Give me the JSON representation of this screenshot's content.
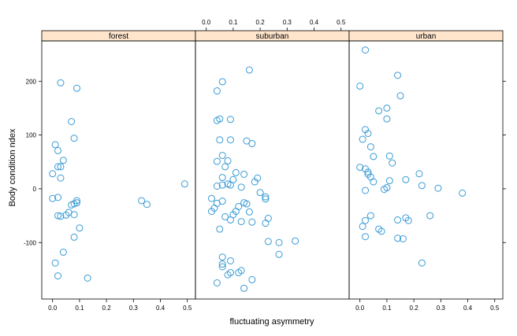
{
  "chart_data": {
    "type": "scatter",
    "title": "",
    "xlabel": "fluctuating asymmetry",
    "ylabel": "Body condition ndex",
    "xlim": [
      -0.04,
      0.53
    ],
    "ylim": [
      -205,
      275
    ],
    "x_ticks": [
      0,
      0.1,
      0.2,
      0.3,
      0.4,
      0.5
    ],
    "x_tick_labels": [
      "0.0",
      "0.1",
      "0.2",
      "0.3",
      "0.4",
      "0.5"
    ],
    "y_ticks": [
      -100,
      0,
      100,
      200
    ],
    "y_tick_labels": [
      "-100",
      "0",
      "100",
      "200"
    ],
    "strip_color": "#ffe5cc",
    "point_color": "#3a9bd5",
    "grid": false,
    "legend": "none",
    "panels": [
      {
        "name": "forest",
        "points": [
          [
            0.03,
            197
          ],
          [
            0.09,
            187
          ],
          [
            0.07,
            125
          ],
          [
            0.08,
            94
          ],
          [
            0.01,
            82
          ],
          [
            0.02,
            71
          ],
          [
            0.04,
            53
          ],
          [
            0.02,
            41
          ],
          [
            0.03,
            41
          ],
          [
            0.0,
            28
          ],
          [
            0.03,
            20
          ],
          [
            0.02,
            -16
          ],
          [
            0.0,
            -18
          ],
          [
            0.09,
            -22
          ],
          [
            0.09,
            -26
          ],
          [
            0.08,
            -28
          ],
          [
            0.07,
            -30
          ],
          [
            0.06,
            -44
          ],
          [
            0.05,
            -49
          ],
          [
            0.08,
            -48
          ],
          [
            0.02,
            -50
          ],
          [
            0.03,
            -51
          ],
          [
            0.1,
            -73
          ],
          [
            0.08,
            -90
          ],
          [
            0.04,
            -118
          ],
          [
            0.01,
            -138
          ],
          [
            0.02,
            -162
          ],
          [
            0.13,
            -166
          ],
          [
            0.33,
            -22
          ],
          [
            0.35,
            -29
          ],
          [
            0.49,
            9
          ]
        ]
      },
      {
        "name": "suburban",
        "points": [
          [
            0.16,
            221
          ],
          [
            0.06,
            199
          ],
          [
            0.04,
            182
          ],
          [
            0.05,
            130
          ],
          [
            0.04,
            127
          ],
          [
            0.09,
            129
          ],
          [
            0.05,
            91
          ],
          [
            0.09,
            91
          ],
          [
            0.15,
            89
          ],
          [
            0.17,
            84
          ],
          [
            0.06,
            62
          ],
          [
            0.04,
            51
          ],
          [
            0.08,
            52
          ],
          [
            0.07,
            41
          ],
          [
            0.11,
            30
          ],
          [
            0.14,
            27
          ],
          [
            0.06,
            21
          ],
          [
            0.1,
            17
          ],
          [
            0.08,
            9
          ],
          [
            0.19,
            20
          ],
          [
            0.18,
            13
          ],
          [
            0.04,
            5
          ],
          [
            0.06,
            7
          ],
          [
            0.09,
            7
          ],
          [
            0.13,
            3
          ],
          [
            0.2,
            -7
          ],
          [
            0.22,
            -15
          ],
          [
            0.22,
            -19
          ],
          [
            0.02,
            -18
          ],
          [
            0.04,
            -27
          ],
          [
            0.06,
            -23
          ],
          [
            0.14,
            -26
          ],
          [
            0.15,
            -28
          ],
          [
            0.12,
            -33
          ],
          [
            0.03,
            -36
          ],
          [
            0.02,
            -42
          ],
          [
            0.11,
            -42
          ],
          [
            0.16,
            -43
          ],
          [
            0.1,
            -48
          ],
          [
            0.07,
            -52
          ],
          [
            0.09,
            -58
          ],
          [
            0.13,
            -61
          ],
          [
            0.17,
            -62
          ],
          [
            0.22,
            -64
          ],
          [
            0.23,
            -55
          ],
          [
            0.05,
            -75
          ],
          [
            0.23,
            -98
          ],
          [
            0.27,
            -100
          ],
          [
            0.33,
            -97
          ],
          [
            0.27,
            -122
          ],
          [
            0.06,
            -127
          ],
          [
            0.09,
            -134
          ],
          [
            0.12,
            -156
          ],
          [
            0.13,
            -152
          ],
          [
            0.06,
            -140
          ],
          [
            0.06,
            -145
          ],
          [
            0.08,
            -160
          ],
          [
            0.09,
            -156
          ],
          [
            0.17,
            -169
          ],
          [
            0.04,
            -175
          ],
          [
            0.14,
            -185
          ]
        ]
      },
      {
        "name": "urban",
        "points": [
          [
            0.02,
            258
          ],
          [
            0.14,
            211
          ],
          [
            0.0,
            191
          ],
          [
            0.15,
            173
          ],
          [
            0.07,
            145
          ],
          [
            0.1,
            150
          ],
          [
            0.1,
            130
          ],
          [
            0.02,
            110
          ],
          [
            0.03,
            103
          ],
          [
            0.01,
            92
          ],
          [
            0.04,
            78
          ],
          [
            0.05,
            60
          ],
          [
            0.11,
            61
          ],
          [
            0.12,
            48
          ],
          [
            0.0,
            40
          ],
          [
            0.02,
            37
          ],
          [
            0.03,
            31
          ],
          [
            0.05,
            13
          ],
          [
            0.03,
            27
          ],
          [
            0.04,
            22
          ],
          [
            0.22,
            28
          ],
          [
            0.17,
            17
          ],
          [
            0.11,
            15
          ],
          [
            0.23,
            6
          ],
          [
            0.1,
            2
          ],
          [
            0.09,
            -1
          ],
          [
            0.02,
            -3
          ],
          [
            0.29,
            1
          ],
          [
            0.38,
            -8
          ],
          [
            0.04,
            -50
          ],
          [
            0.02,
            -59
          ],
          [
            0.17,
            -54
          ],
          [
            0.14,
            -58
          ],
          [
            0.18,
            -59
          ],
          [
            0.26,
            -50
          ],
          [
            0.07,
            -75
          ],
          [
            0.08,
            -79
          ],
          [
            0.01,
            -70
          ],
          [
            0.02,
            -89
          ],
          [
            0.14,
            -92
          ],
          [
            0.16,
            -93
          ],
          [
            0.23,
            -138
          ]
        ]
      }
    ]
  }
}
